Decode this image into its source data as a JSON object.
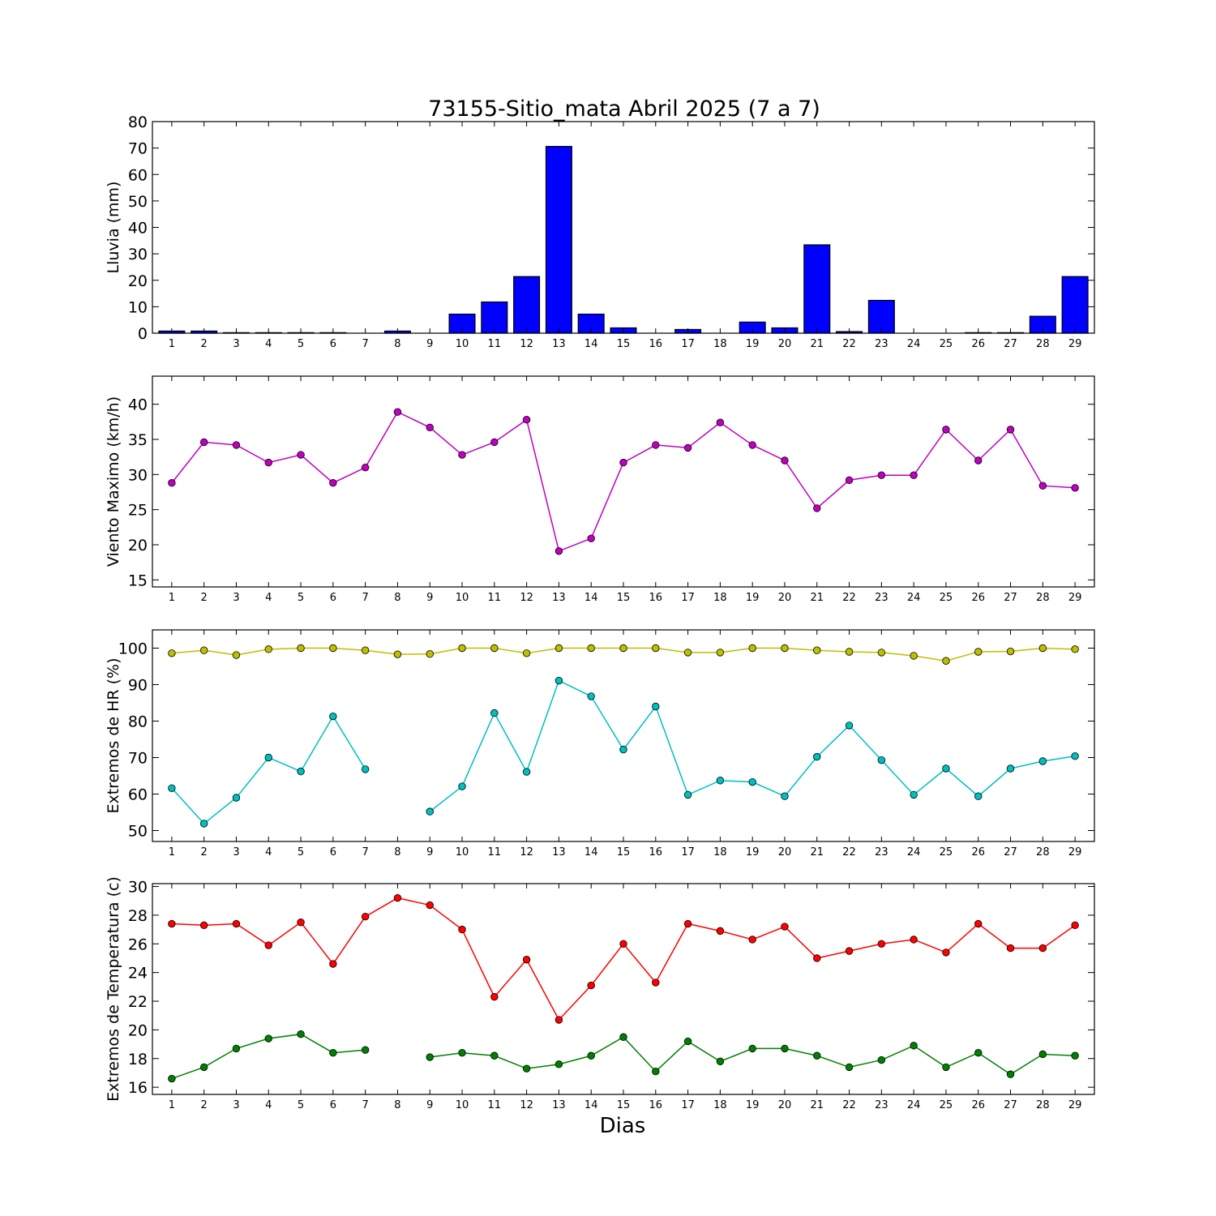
{
  "title": "73155-Sitio_mata Abril 2025  (7 a 7)",
  "xlabel": "Dias",
  "chart_data": [
    {
      "type": "bar",
      "ylabel": "Lluvia (mm)",
      "ylim": [
        0,
        80
      ],
      "yticks": [
        0,
        10,
        20,
        30,
        40,
        50,
        60,
        70,
        80
      ],
      "categories": [
        1,
        2,
        3,
        4,
        5,
        6,
        7,
        8,
        9,
        10,
        11,
        12,
        13,
        14,
        15,
        16,
        17,
        18,
        19,
        20,
        21,
        22,
        23,
        24,
        25,
        26,
        27,
        28,
        29
      ],
      "series": [
        {
          "color": "#0000ff",
          "values": [
            0.8,
            0.8,
            0.2,
            0.2,
            0.2,
            0.2,
            0,
            0.8,
            0,
            7.2,
            11.8,
            21.4,
            70.6,
            7.2,
            2,
            0,
            1.4,
            0,
            4.2,
            2,
            33.4,
            0.6,
            12.4,
            0,
            0,
            0.2,
            0.2,
            6.4,
            21.4
          ]
        }
      ]
    },
    {
      "type": "line",
      "ylabel": "Viento Maximo (km/h)",
      "ylim": [
        14,
        44
      ],
      "yticks": [
        15,
        20,
        25,
        30,
        35,
        40
      ],
      "categories": [
        1,
        2,
        3,
        4,
        5,
        6,
        7,
        8,
        9,
        10,
        11,
        12,
        13,
        14,
        15,
        16,
        17,
        18,
        19,
        20,
        21,
        22,
        23,
        24,
        25,
        26,
        27,
        28,
        29
      ],
      "series": [
        {
          "color": "#bf00bf",
          "values": [
            28.8,
            34.6,
            34.2,
            31.7,
            32.8,
            28.8,
            31,
            38.9,
            36.7,
            32.8,
            34.6,
            37.8,
            19.1,
            20.9,
            31.7,
            34.2,
            33.8,
            37.4,
            34.2,
            32,
            25.2,
            29.2,
            29.9,
            29.9,
            36.4,
            32,
            36.4,
            28.4,
            28.1
          ]
        }
      ]
    },
    {
      "type": "line",
      "ylabel": "Extremos de HR (%)",
      "ylim": [
        47,
        105
      ],
      "yticks": [
        50,
        60,
        70,
        80,
        90,
        100
      ],
      "categories": [
        1,
        2,
        3,
        4,
        5,
        6,
        7,
        8,
        9,
        10,
        11,
        12,
        13,
        14,
        15,
        16,
        17,
        18,
        19,
        20,
        21,
        22,
        23,
        24,
        25,
        26,
        27,
        28,
        29
      ],
      "series": [
        {
          "color": "#bfbf00",
          "values": [
            98.6,
            99.4,
            98.1,
            99.7,
            100,
            100,
            99.4,
            98.3,
            98.4,
            100,
            100,
            98.6,
            100,
            100,
            100,
            100,
            98.8,
            98.8,
            100,
            100,
            99.4,
            99,
            98.8,
            97.9,
            96.5,
            99,
            99.1,
            100,
            99.7
          ]
        },
        {
          "color": "#00bfbf",
          "values": [
            61.6,
            51.9,
            59,
            70,
            66.2,
            81.3,
            66.8,
            null,
            55.2,
            62.1,
            82.2,
            66.1,
            91.1,
            86.8,
            72.2,
            84,
            59.8,
            63.7,
            63.3,
            59.4,
            70.2,
            78.8,
            69.3,
            59.8,
            67,
            59.4,
            67,
            69,
            70.4
          ]
        }
      ]
    },
    {
      "type": "line",
      "ylabel": "Extremos de Temperatura (c)",
      "ylim": [
        15.5,
        30.2
      ],
      "yticks": [
        16,
        18,
        20,
        22,
        24,
        26,
        28,
        30
      ],
      "categories": [
        1,
        2,
        3,
        4,
        5,
        6,
        7,
        8,
        9,
        10,
        11,
        12,
        13,
        14,
        15,
        16,
        17,
        18,
        19,
        20,
        21,
        22,
        23,
        24,
        25,
        26,
        27,
        28,
        29
      ],
      "series": [
        {
          "color": "#ff0000",
          "values": [
            27.4,
            27.3,
            27.4,
            25.9,
            27.5,
            24.6,
            27.9,
            29.2,
            28.7,
            27,
            22.3,
            24.9,
            20.7,
            23.1,
            26,
            23.3,
            27.4,
            26.9,
            26.3,
            27.2,
            25,
            25.5,
            26,
            26.3,
            25.4,
            27.4,
            25.7,
            25.7,
            27.3
          ]
        },
        {
          "color": "#008000",
          "values": [
            16.6,
            17.4,
            18.7,
            19.4,
            19.7,
            18.4,
            18.6,
            null,
            18.1,
            18.4,
            18.2,
            17.3,
            17.6,
            18.2,
            19.5,
            17.1,
            19.2,
            17.8,
            18.7,
            18.7,
            18.2,
            17.4,
            17.9,
            18.9,
            17.4,
            18.4,
            16.9,
            18.3,
            18.2
          ]
        }
      ]
    }
  ]
}
